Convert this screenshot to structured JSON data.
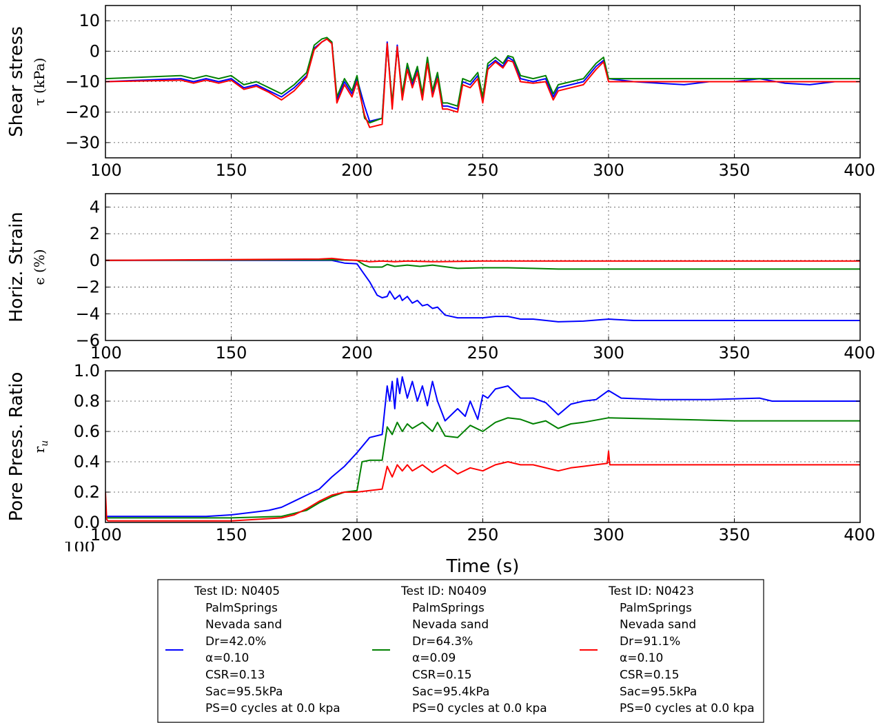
{
  "chart_data": [
    {
      "type": "line",
      "ylabel": "Shear stress",
      "ylabel_sub": "τ (kPa)",
      "xlim": [
        100,
        400
      ],
      "ylim": [
        -35,
        15
      ],
      "xticks": [
        100,
        150,
        200,
        250,
        300,
        350,
        400
      ],
      "yticks": [
        -30,
        -20,
        -10,
        0,
        10
      ],
      "grid": true,
      "series": [
        {
          "color": "#0000ff",
          "x": [
            100,
            130,
            135,
            140,
            145,
            150,
            155,
            160,
            165,
            170,
            175,
            180,
            183,
            186,
            188,
            190,
            192,
            195,
            198,
            200,
            203,
            205,
            210,
            212,
            214,
            216,
            218,
            220,
            222,
            224,
            226,
            228,
            230,
            232,
            234,
            236,
            240,
            242,
            245,
            248,
            250,
            252,
            255,
            258,
            260,
            262,
            265,
            270,
            275,
            278,
            280,
            285,
            290,
            295,
            298,
            300,
            310,
            320,
            330,
            340,
            350,
            360,
            370,
            380,
            390,
            400
          ],
          "y": [
            -10,
            -9,
            -10,
            -9,
            -10,
            -9,
            -12,
            -11,
            -13,
            -15,
            -12,
            -8,
            1,
            3,
            4,
            3,
            -16,
            -10,
            -14,
            -9,
            -18,
            -23,
            -22,
            3,
            -18,
            2,
            -15,
            -5,
            -11,
            -6,
            -15,
            -3,
            -14,
            -8,
            -18,
            -18,
            -19,
            -10,
            -11,
            -8,
            -16,
            -5,
            -3,
            -5,
            -2,
            -3,
            -9,
            -10,
            -9,
            -15,
            -12,
            -11,
            -10,
            -5,
            -3,
            -9,
            -10,
            -10.5,
            -11,
            -10,
            -10,
            -9,
            -10.5,
            -11,
            -10,
            -10
          ]
        },
        {
          "color": "#008000",
          "x": [
            100,
            130,
            135,
            140,
            145,
            150,
            155,
            160,
            165,
            170,
            175,
            180,
            183,
            186,
            188,
            190,
            192,
            195,
            198,
            200,
            203,
            205,
            210,
            212,
            214,
            216,
            218,
            220,
            222,
            224,
            226,
            228,
            230,
            232,
            234,
            236,
            240,
            242,
            245,
            248,
            250,
            252,
            255,
            258,
            260,
            262,
            265,
            270,
            275,
            278,
            280,
            285,
            290,
            295,
            298,
            300,
            310,
            320,
            330,
            340,
            350,
            360,
            370,
            380,
            390,
            400
          ],
          "y": [
            -9,
            -8,
            -9,
            -8,
            -9,
            -8,
            -11,
            -10,
            -12,
            -14,
            -11,
            -7,
            2,
            4,
            4.5,
            3,
            -15,
            -9,
            -13,
            -8,
            -22,
            -23.5,
            -22,
            2,
            -17,
            1,
            -14,
            -4,
            -10,
            -5,
            -14,
            -2,
            -13,
            -7,
            -17,
            -17,
            -18,
            -9,
            -10,
            -7,
            -15,
            -4,
            -2,
            -4,
            -1.5,
            -2,
            -8,
            -9,
            -8,
            -14,
            -11,
            -10,
            -9,
            -4,
            -2,
            -9,
            -9,
            -9,
            -9,
            -9,
            -9,
            -9,
            -9,
            -9,
            -9,
            -9
          ]
        },
        {
          "color": "#ff0000",
          "x": [
            100,
            130,
            135,
            140,
            145,
            150,
            155,
            160,
            165,
            170,
            175,
            180,
            183,
            186,
            188,
            190,
            192,
            195,
            198,
            200,
            203,
            205,
            210,
            212,
            214,
            216,
            218,
            220,
            222,
            224,
            226,
            228,
            230,
            232,
            234,
            236,
            240,
            242,
            245,
            248,
            250,
            252,
            255,
            258,
            260,
            262,
            265,
            270,
            275,
            278,
            280,
            285,
            290,
            295,
            298,
            300,
            310,
            320,
            330,
            340,
            350,
            360,
            370,
            380,
            390,
            400
          ],
          "y": [
            -10,
            -9.5,
            -10.5,
            -9.5,
            -10.5,
            -9.5,
            -12.5,
            -11.5,
            -13.5,
            -16,
            -13,
            -8.5,
            0.5,
            3,
            4,
            2.5,
            -17,
            -11,
            -15,
            -10,
            -21,
            -25,
            -24,
            2.5,
            -19,
            1.5,
            -16,
            -6,
            -12,
            -7,
            -16,
            -4,
            -15,
            -9,
            -19,
            -19,
            -20,
            -11,
            -12,
            -9,
            -17,
            -6,
            -3.5,
            -5.5,
            -3,
            -3.5,
            -10,
            -10.5,
            -10,
            -16,
            -13,
            -12,
            -11,
            -6,
            -3.5,
            -10,
            -10,
            -10,
            -10,
            -10,
            -10,
            -10,
            -10,
            -10,
            -10,
            -10
          ]
        }
      ]
    },
    {
      "type": "line",
      "ylabel": "Horiz. Strain",
      "ylabel_sub": "ϵ (%)",
      "xlim": [
        100,
        400
      ],
      "ylim": [
        -6,
        5
      ],
      "xticks": [
        100,
        150,
        200,
        250,
        300,
        350,
        400
      ],
      "yticks": [
        -6,
        -4,
        -2,
        0,
        2,
        4
      ],
      "grid": true,
      "series": [
        {
          "color": "#0000ff",
          "x": [
            100,
            180,
            190,
            195,
            200,
            202,
            205,
            208,
            210,
            212,
            213,
            215,
            217,
            218,
            220,
            222,
            224,
            226,
            228,
            230,
            232,
            235,
            240,
            250,
            255,
            260,
            265,
            270,
            280,
            290,
            300,
            310,
            350,
            400
          ],
          "y": [
            0,
            0,
            0,
            -0.2,
            -0.25,
            -0.8,
            -1.6,
            -2.6,
            -2.8,
            -2.7,
            -2.3,
            -2.9,
            -2.6,
            -3.0,
            -2.7,
            -3.2,
            -3.0,
            -3.4,
            -3.3,
            -3.6,
            -3.5,
            -4.1,
            -4.3,
            -4.3,
            -4.2,
            -4.2,
            -4.4,
            -4.4,
            -4.6,
            -4.55,
            -4.4,
            -4.5,
            -4.5,
            -4.5
          ]
        },
        {
          "color": "#008000",
          "x": [
            100,
            190,
            200,
            203,
            205,
            210,
            212,
            215,
            220,
            225,
            230,
            240,
            250,
            260,
            270,
            280,
            300,
            350,
            400
          ],
          "y": [
            0,
            0.05,
            0,
            -0.35,
            -0.5,
            -0.5,
            -0.3,
            -0.45,
            -0.35,
            -0.45,
            -0.35,
            -0.6,
            -0.55,
            -0.55,
            -0.6,
            -0.65,
            -0.65,
            -0.65,
            -0.65
          ]
        },
        {
          "color": "#ff0000",
          "x": [
            100,
            185,
            190,
            195,
            200,
            205,
            210,
            215,
            220,
            230,
            250,
            300,
            350,
            400
          ],
          "y": [
            0,
            0.1,
            0.15,
            0.05,
            0,
            -0.1,
            -0.05,
            -0.1,
            -0.05,
            -0.1,
            -0.05,
            -0.05,
            -0.05,
            -0.05
          ]
        }
      ]
    },
    {
      "type": "line",
      "ylabel": "Pore Press. Ratio",
      "ylabel_sub": "r",
      "ylabel_sub_index": "u",
      "xlabel": "Time (s)",
      "xlim": [
        100,
        400
      ],
      "ylim": [
        0,
        1.0
      ],
      "xticks": [
        100,
        150,
        200,
        250,
        300,
        350,
        400
      ],
      "yticks": [
        0.0,
        0.2,
        0.4,
        0.6,
        0.8,
        1.0
      ],
      "grid": true,
      "series": [
        {
          "color": "#0000ff",
          "x": [
            100,
            140,
            150,
            160,
            165,
            170,
            175,
            180,
            185,
            190,
            195,
            200,
            205,
            210,
            212,
            213,
            214,
            215,
            216,
            217,
            218,
            220,
            222,
            224,
            226,
            228,
            230,
            232,
            235,
            240,
            243,
            245,
            248,
            250,
            252,
            255,
            260,
            265,
            270,
            275,
            280,
            285,
            290,
            295,
            300,
            305,
            320,
            340,
            360,
            365,
            380,
            400
          ],
          "y": [
            0.04,
            0.04,
            0.05,
            0.07,
            0.08,
            0.1,
            0.14,
            0.18,
            0.22,
            0.3,
            0.37,
            0.46,
            0.56,
            0.58,
            0.9,
            0.8,
            0.93,
            0.75,
            0.95,
            0.85,
            0.96,
            0.82,
            0.93,
            0.8,
            0.9,
            0.77,
            0.93,
            0.8,
            0.67,
            0.75,
            0.7,
            0.8,
            0.68,
            0.84,
            0.82,
            0.88,
            0.9,
            0.82,
            0.82,
            0.79,
            0.71,
            0.78,
            0.8,
            0.81,
            0.87,
            0.82,
            0.81,
            0.81,
            0.82,
            0.8,
            0.8,
            0.8
          ]
        },
        {
          "color": "#008000",
          "x": [
            100,
            150,
            170,
            175,
            180,
            185,
            190,
            195,
            200,
            202,
            205,
            208,
            210,
            212,
            214,
            216,
            218,
            220,
            222,
            226,
            230,
            232,
            235,
            240,
            245,
            250,
            255,
            260,
            265,
            270,
            275,
            280,
            285,
            290,
            300,
            350,
            400
          ],
          "y": [
            0.03,
            0.03,
            0.04,
            0.06,
            0.08,
            0.13,
            0.17,
            0.2,
            0.21,
            0.4,
            0.41,
            0.41,
            0.41,
            0.63,
            0.58,
            0.66,
            0.6,
            0.65,
            0.62,
            0.66,
            0.6,
            0.66,
            0.57,
            0.56,
            0.64,
            0.6,
            0.66,
            0.69,
            0.68,
            0.65,
            0.67,
            0.62,
            0.65,
            0.66,
            0.69,
            0.67,
            0.67
          ]
        },
        {
          "color": "#ff0000",
          "x": [
            100,
            100.5,
            101,
            150,
            170,
            175,
            180,
            185,
            190,
            195,
            200,
            205,
            210,
            212,
            214,
            216,
            218,
            220,
            222,
            226,
            230,
            235,
            240,
            245,
            250,
            255,
            260,
            265,
            270,
            280,
            285,
            290,
            299.5,
            300,
            300.5,
            310,
            350,
            400
          ],
          "y": [
            0.2,
            0.02,
            0.01,
            0.01,
            0.03,
            0.05,
            0.09,
            0.14,
            0.18,
            0.2,
            0.2,
            0.21,
            0.22,
            0.37,
            0.3,
            0.38,
            0.34,
            0.38,
            0.34,
            0.38,
            0.33,
            0.38,
            0.32,
            0.36,
            0.34,
            0.38,
            0.4,
            0.38,
            0.38,
            0.34,
            0.36,
            0.37,
            0.39,
            0.47,
            0.38,
            0.38,
            0.38,
            0.38
          ]
        }
      ]
    }
  ],
  "overlap_label": "100",
  "legend": [
    {
      "color": "#0000ff",
      "lines": [
        "Test ID:  N0405",
        "PalmSprings",
        "Nevada sand",
        "Dr=42.0%",
        "α=0.10",
        "CSR=0.13",
        "Sac=95.5kPa",
        "PS=0 cycles at 0.0 kpa"
      ]
    },
    {
      "color": "#008000",
      "lines": [
        "Test ID:  N0409",
        "PalmSprings",
        "Nevada sand",
        "Dr=64.3%",
        "α=0.09",
        "CSR=0.15",
        "Sac=95.4kPa",
        "PS=0 cycles at 0.0 kpa"
      ]
    },
    {
      "color": "#ff0000",
      "lines": [
        "Test ID:  N0423",
        "PalmSprings",
        "Nevada sand",
        "Dr=91.1%",
        "α=0.10",
        "CSR=0.15",
        "Sac=95.5kPa",
        "PS=0 cycles at 0.0 kpa"
      ]
    }
  ]
}
